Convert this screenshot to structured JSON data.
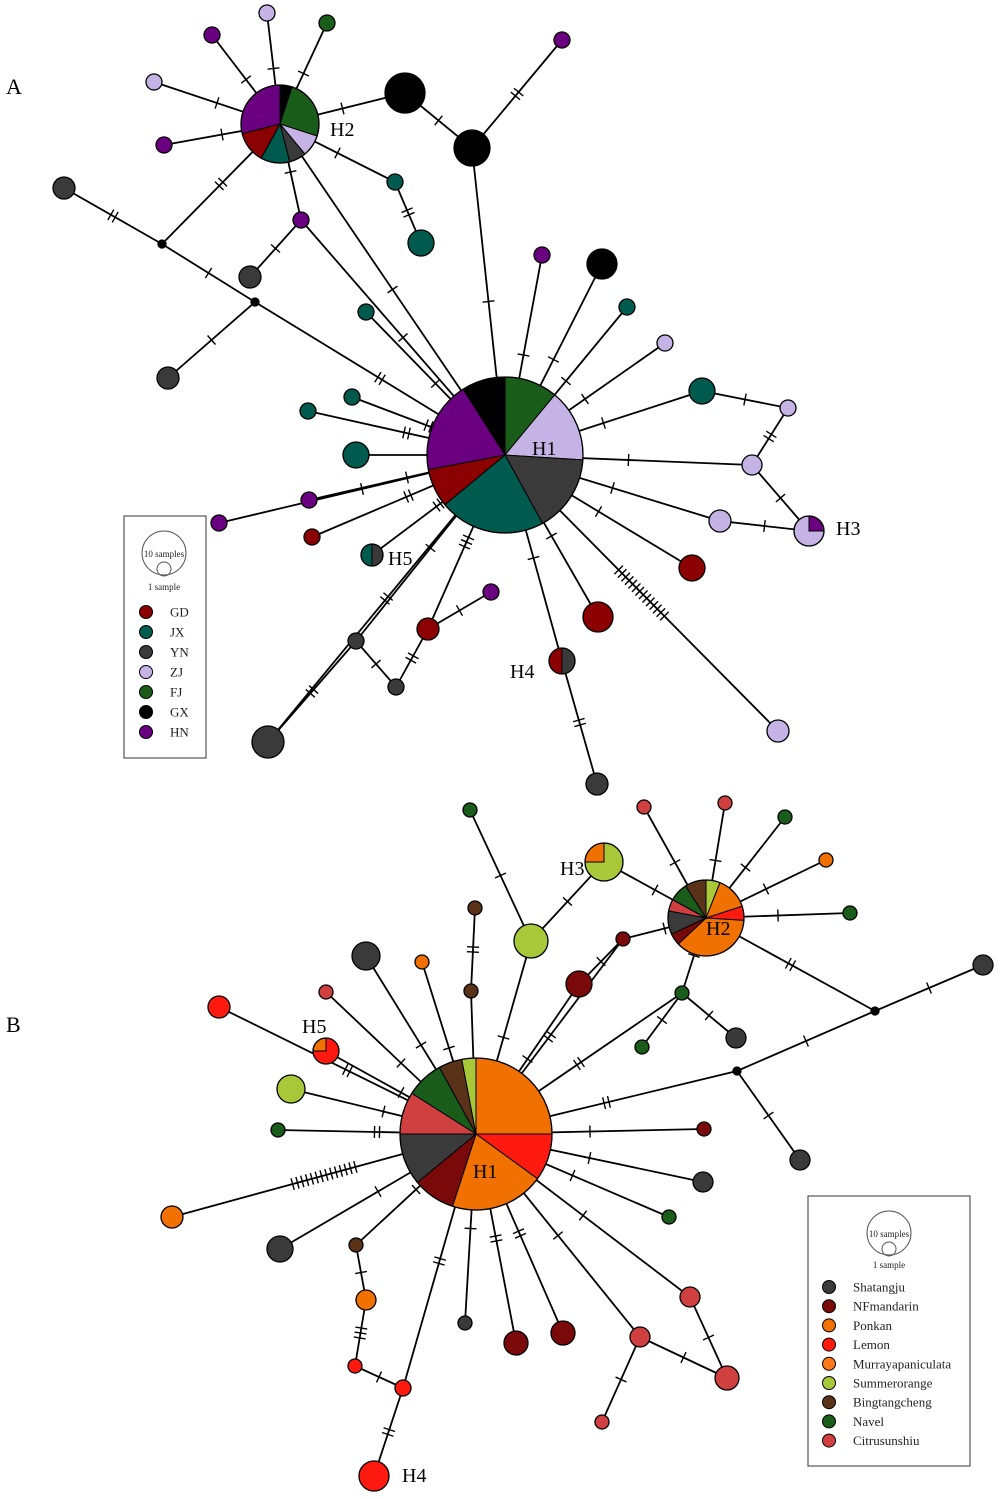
{
  "panels": {
    "a": {
      "letter": "A"
    },
    "b": {
      "letter": "B"
    }
  },
  "legend_a": {
    "size_large": "10 samples",
    "size_small": "1 sample",
    "items": [
      {
        "label": "GD",
        "color": "#8b0000"
      },
      {
        "label": "JX",
        "color": "#005a4e"
      },
      {
        "label": "YN",
        "color": "#3a3a3a"
      },
      {
        "label": "ZJ",
        "color": "#c6b3e6"
      },
      {
        "label": "FJ",
        "color": "#1a5c1a"
      },
      {
        "label": "GX",
        "color": "#000000"
      },
      {
        "label": "HN",
        "color": "#6a0080"
      }
    ]
  },
  "legend_b": {
    "size_large": "10 samples",
    "size_small": "1 sample",
    "items": [
      {
        "label": "Shatangju",
        "color": "#3a3a3a"
      },
      {
        "label": "NFmandarin",
        "color": "#7a0a0a"
      },
      {
        "label": "Ponkan",
        "color": "#f07000"
      },
      {
        "label": "Lemon",
        "color": "#ff1a10"
      },
      {
        "label": "Murrayapaniculata",
        "color": "#ff7a1a"
      },
      {
        "label": "Summerorange",
        "color": "#a8c83a"
      },
      {
        "label": "Bingtangcheng",
        "color": "#5a3218"
      },
      {
        "label": "Navel",
        "color": "#1a5c1a"
      },
      {
        "label": "Citrusunshiu",
        "color": "#d04040"
      }
    ]
  },
  "haplotype_labels_a": [
    "H1",
    "H2",
    "H3",
    "H4",
    "H5"
  ],
  "haplotype_labels_b": [
    "H1",
    "H2",
    "H3",
    "H4",
    "H5"
  ]
}
